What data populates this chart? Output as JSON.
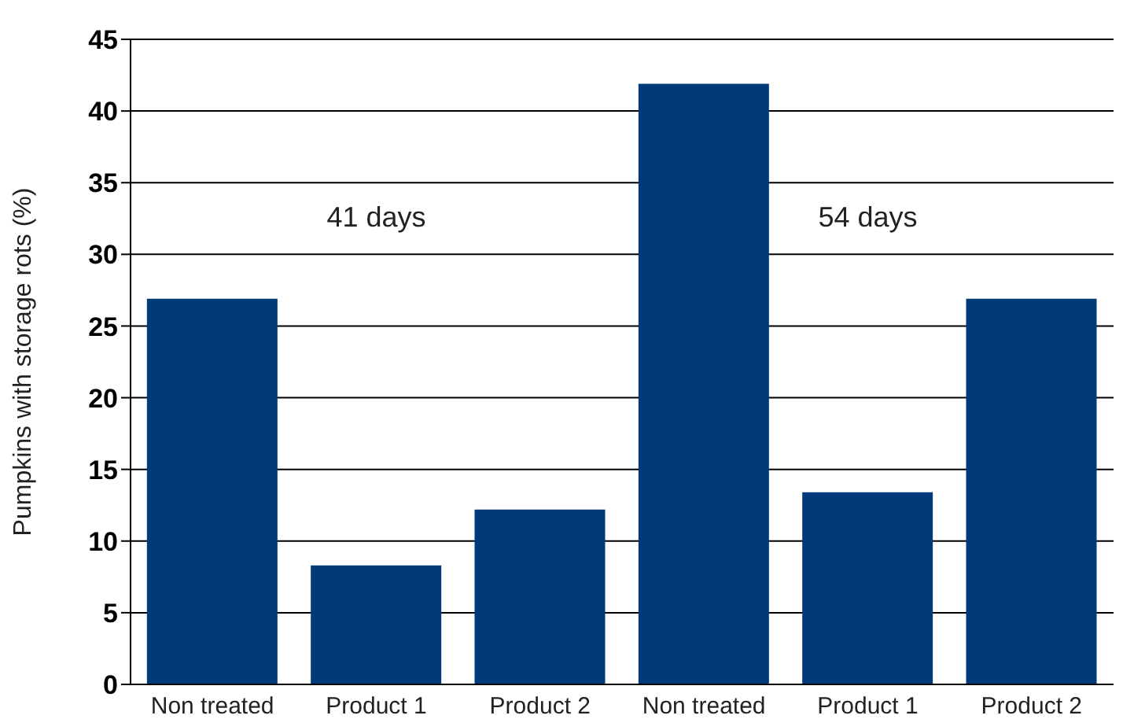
{
  "chart_data": {
    "type": "bar",
    "ylabel": "Pumpkins with storage rots (%)",
    "categories": [
      "Non treated",
      "Product 1",
      "Product 2",
      "Non treated",
      "Product 1",
      "Product 2"
    ],
    "values": [
      26.9,
      8.3,
      12.2,
      41.9,
      13.4,
      26.9
    ],
    "color": "#003a78",
    "ylim": [
      0,
      45
    ],
    "yticks": [
      0,
      5,
      10,
      15,
      20,
      25,
      30,
      35,
      40,
      45
    ],
    "grid": "y",
    "annotations": [
      "41 days",
      "54 days"
    ]
  }
}
